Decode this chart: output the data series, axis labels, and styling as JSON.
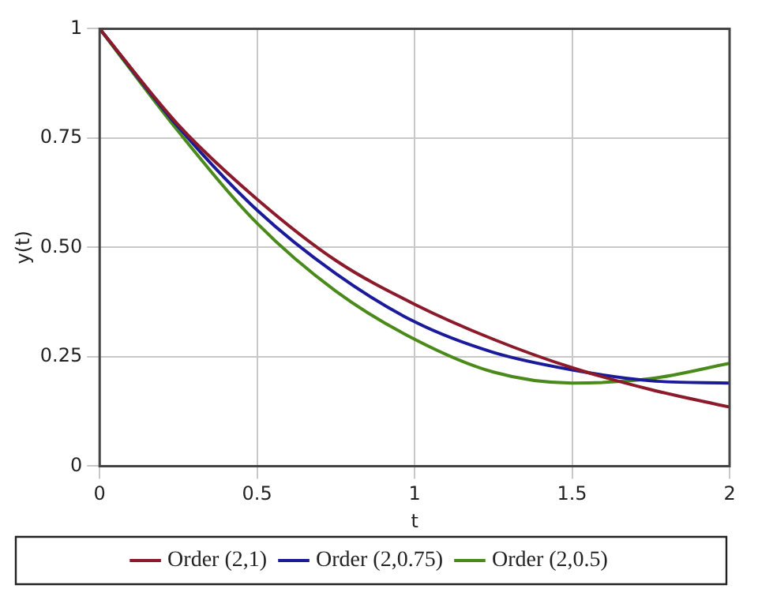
{
  "chart_data": {
    "type": "line",
    "xlabel": "t",
    "ylabel": "y(t)",
    "x": [
      0,
      0.25,
      0.5,
      0.75,
      1,
      1.25,
      1.5,
      1.75,
      2
    ],
    "series": [
      {
        "name": "Order (2,1)",
        "color": "#8b1a2b",
        "values": [
          1,
          0.78,
          0.61,
          0.47,
          0.37,
          0.29,
          0.225,
          0.175,
          0.135
        ]
      },
      {
        "name": "Order (2,0.75)",
        "color": "#1a1a9a",
        "values": [
          1,
          0.775,
          0.585,
          0.44,
          0.33,
          0.26,
          0.22,
          0.195,
          0.19
        ]
      },
      {
        "name": "Order (2,0.5)",
        "color": "#4a8a1a",
        "values": [
          1,
          0.765,
          0.555,
          0.4,
          0.29,
          0.215,
          0.19,
          0.2,
          0.235
        ]
      }
    ],
    "xlim": [
      0,
      2
    ],
    "xticks": [
      0,
      0.5,
      1,
      1.5,
      2
    ],
    "ylim": [
      0,
      1
    ],
    "yticks": [
      0,
      0.25,
      {
        "value": 0.5,
        "label": "0.50"
      },
      0.75,
      1
    ],
    "grid": true,
    "legend": "bottom",
    "marker": "none",
    "line_style": "solid"
  }
}
